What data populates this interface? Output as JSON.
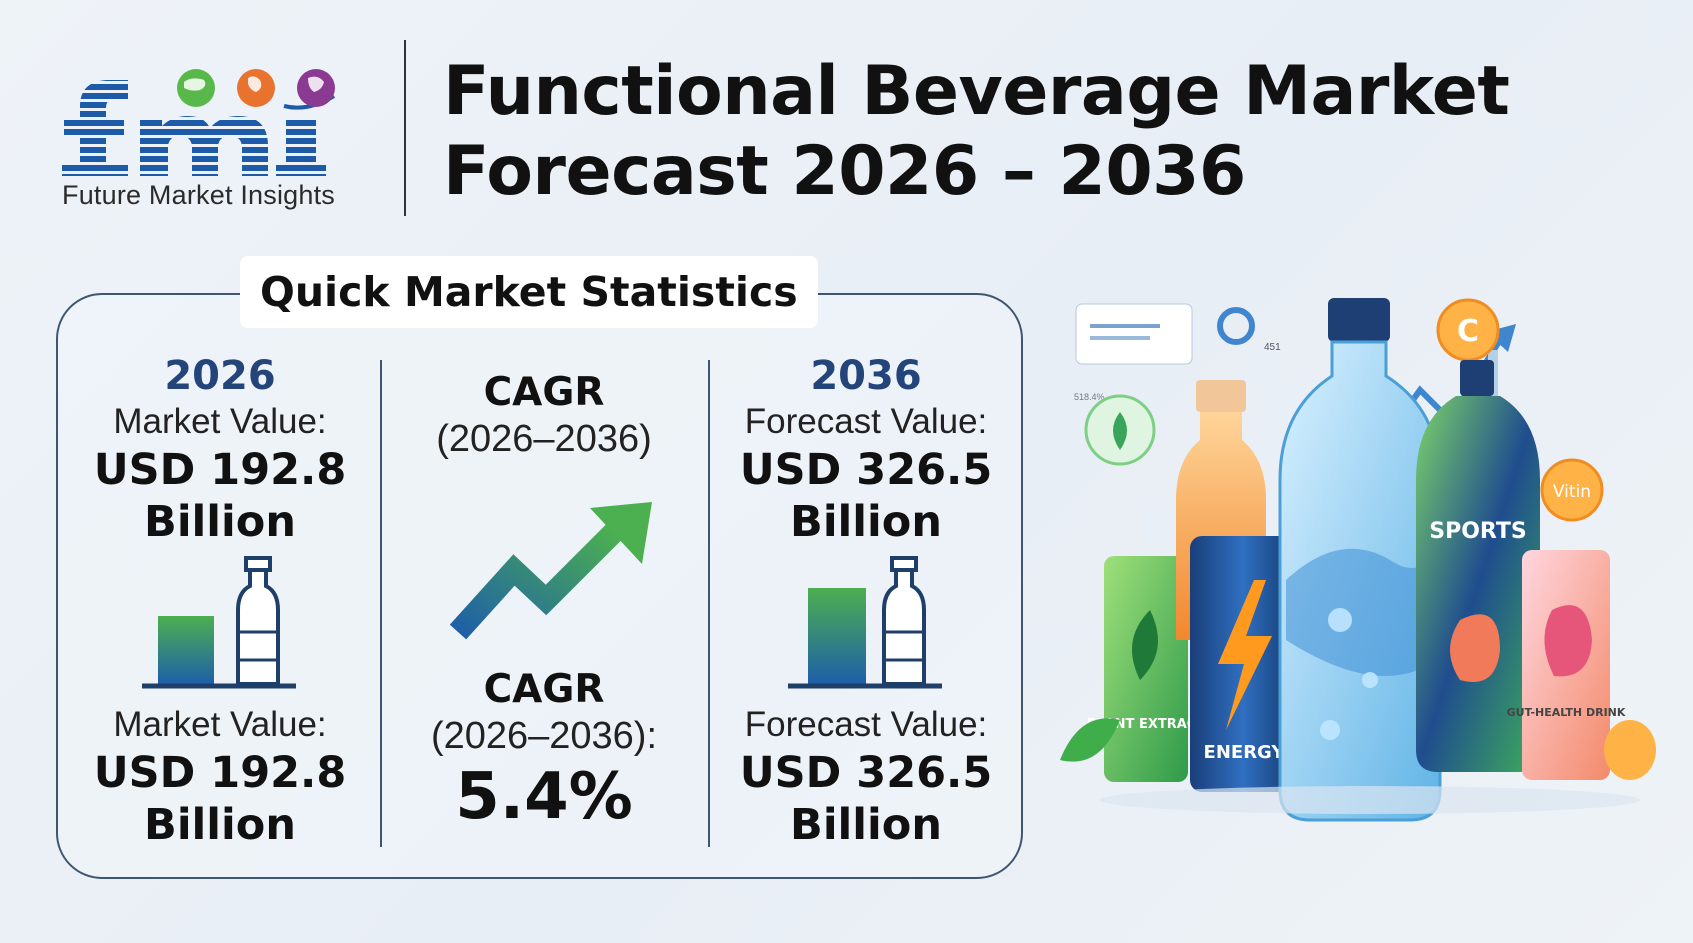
{
  "brand": {
    "logo_text": "fmi",
    "caption": "Future Market Insights",
    "colors": {
      "primary": "#1d5aa8",
      "green": "#59b84a",
      "orange": "#e8732e",
      "purple": "#8a3b91"
    }
  },
  "header": {
    "title_line1": "Functional Beverage Market",
    "title_line2": "Forecast 2026 – 2036"
  },
  "stats": {
    "heading": "Quick Market Statistics",
    "left": {
      "year": "2026",
      "label_top": "Market Value:",
      "value_top_line1": "USD 192.8",
      "value_top_line2": "Billion",
      "label_bottom": "Market Value:",
      "value_bottom_line1": "USD 192.8",
      "value_bottom_line2": "Billion"
    },
    "middle": {
      "title_top": "CAGR",
      "range_top": "(2026–2036)",
      "title_bottom": "CAGR",
      "range_bottom": "(2026–2036):",
      "value": "5.4%"
    },
    "right": {
      "year": "2036",
      "label_top": "Forecast Value:",
      "value_top_line1": "USD 326.5",
      "value_top_line2": "Billion",
      "label_bottom": "Forecast Value:",
      "value_bottom_line1": "USD 326.5",
      "value_bottom_line2": "Billion"
    }
  },
  "illustration": {
    "can_plant": "PLANT EXTRACT",
    "can_energy": "ENERGY",
    "bottle_sports": "SPORTS",
    "can_gut": "GUT-HEALTH DRINK",
    "bubble_c": "C",
    "bubble_vitamin": "Vitin",
    "chart_label_small": "451",
    "chart_label_tiny": "518.4%"
  }
}
